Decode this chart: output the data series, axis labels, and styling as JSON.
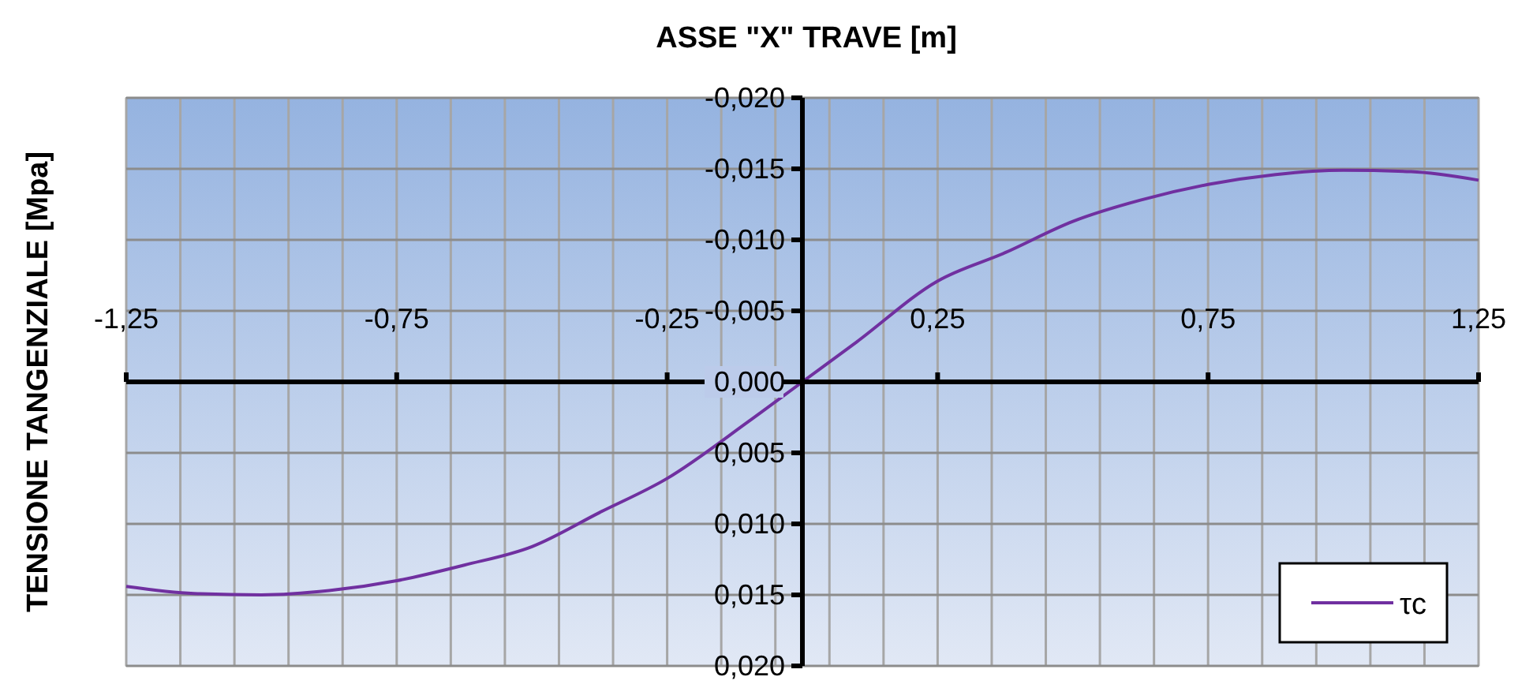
{
  "chart_data": {
    "type": "line",
    "title": "ASSE \"X\" TRAVE [m]",
    "ylabel": "TENSIONE TANGENZIALE  [Mpa]",
    "xlim": [
      -1.25,
      1.25
    ],
    "xticks": [
      {
        "value": -1.25,
        "label": "-1,25"
      },
      {
        "value": -1.15,
        "label": null
      },
      {
        "value": -1.05,
        "label": null
      },
      {
        "value": -0.95,
        "label": null
      },
      {
        "value": -0.85,
        "label": null
      },
      {
        "value": -0.75,
        "label": "-0,75"
      },
      {
        "value": -0.65,
        "label": null
      },
      {
        "value": -0.55,
        "label": null
      },
      {
        "value": -0.45,
        "label": null
      },
      {
        "value": -0.35,
        "label": null
      },
      {
        "value": -0.25,
        "label": "-0,25"
      },
      {
        "value": -0.15,
        "label": null
      },
      {
        "value": -0.05,
        "label": null
      },
      {
        "value": 0.05,
        "label": null
      },
      {
        "value": 0.15,
        "label": null
      },
      {
        "value": 0.25,
        "label": "0,25"
      },
      {
        "value": 0.35,
        "label": null
      },
      {
        "value": 0.45,
        "label": null
      },
      {
        "value": 0.55,
        "label": null
      },
      {
        "value": 0.65,
        "label": null
      },
      {
        "value": 0.75,
        "label": "0,75"
      },
      {
        "value": 0.85,
        "label": null
      },
      {
        "value": 0.95,
        "label": null
      },
      {
        "value": 1.05,
        "label": null
      },
      {
        "value": 1.15,
        "label": null
      },
      {
        "value": 1.25,
        "label": "1,25"
      }
    ],
    "ylim": [
      0.02,
      -0.02
    ],
    "yticks": [
      {
        "value": -0.02,
        "label": "-0,020"
      },
      {
        "value": -0.015,
        "label": "-0,015"
      },
      {
        "value": -0.01,
        "label": "-0,010"
      },
      {
        "value": -0.005,
        "label": "-0,005"
      },
      {
        "value": 0,
        "label": "0,000"
      },
      {
        "value": 0.005,
        "label": "0,005"
      },
      {
        "value": 0.01,
        "label": "0,010"
      },
      {
        "value": 0.015,
        "label": "0,015"
      },
      {
        "value": 0.02,
        "label": "0,020"
      }
    ],
    "grid": true,
    "legend": "bottom right",
    "marker": "none",
    "line_style": "solid",
    "series": [
      {
        "name": "τc",
        "color": "#7030a0",
        "x": [
          -1.25,
          -1.125,
          -1.0,
          -0.875,
          -0.75,
          -0.625,
          -0.5,
          -0.375,
          -0.25,
          -0.1,
          0,
          0.1,
          0.25,
          0.375,
          0.5,
          0.625,
          0.75,
          0.875,
          1.0,
          1.125,
          1.25
        ],
        "values": [
          0.0144,
          0.0149,
          0.015,
          0.0147,
          0.014,
          0.0129,
          0.0116,
          0.0092,
          0.0068,
          0.0028,
          0,
          -0.0028,
          -0.0071,
          -0.0091,
          -0.0113,
          -0.0128,
          -0.0139,
          -0.0146,
          -0.0149,
          -0.0148,
          -0.0142
        ]
      }
    ]
  }
}
